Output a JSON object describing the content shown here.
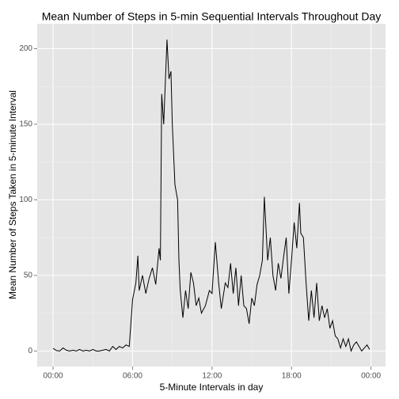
{
  "chart_data": {
    "type": "line",
    "title": "Mean Number of Steps in 5-min Sequential Intervals Throughout Day",
    "x_label": "5-Minute Intervals in day",
    "y_label": "Mean Number of Steps Taken in 5-minute Interval",
    "x": [
      0,
      0.25,
      0.5,
      0.75,
      1,
      1.25,
      1.5,
      1.75,
      2,
      2.25,
      2.5,
      2.75,
      3,
      3.25,
      3.5,
      3.75,
      4,
      4.25,
      4.5,
      4.75,
      5,
      5.25,
      5.5,
      5.75,
      6,
      6.25,
      6.4,
      6.5,
      6.75,
      7,
      7.25,
      7.5,
      7.75,
      8,
      8.1,
      8.2,
      8.35,
      8.6,
      8.75,
      8.9,
      9,
      9.2,
      9.4,
      9.5,
      9.6,
      9.8,
      10,
      10.2,
      10.4,
      10.6,
      10.8,
      11,
      11.2,
      11.5,
      11.8,
      12,
      12.1,
      12.25,
      12.5,
      12.7,
      13,
      13.2,
      13.4,
      13.6,
      13.8,
      14,
      14.2,
      14.4,
      14.6,
      14.8,
      15,
      15.2,
      15.4,
      15.6,
      15.8,
      15.95,
      16.2,
      16.4,
      16.6,
      16.8,
      17,
      17.2,
      17.4,
      17.6,
      17.8,
      18,
      18.2,
      18.4,
      18.6,
      18.7,
      18.9,
      19.1,
      19.3,
      19.5,
      19.7,
      19.9,
      20.1,
      20.3,
      20.5,
      20.7,
      20.9,
      21.1,
      21.3,
      21.5,
      21.7,
      21.9,
      22.1,
      22.3,
      22.5,
      22.7,
      22.9,
      23.1,
      23.3,
      23.5,
      23.7,
      23.9
    ],
    "series": [
      {
        "name": "steps",
        "color": "#000000",
        "values": [
          1.7,
          0.3,
          0,
          2,
          0.5,
          0,
          0.5,
          0,
          1,
          0,
          0.5,
          0,
          1,
          0,
          0,
          0.5,
          1,
          0,
          3,
          1,
          3,
          2,
          4,
          3,
          34,
          45,
          63,
          40,
          50,
          38,
          48,
          55,
          44,
          68,
          60,
          170,
          150,
          206,
          180,
          185,
          150,
          110,
          100,
          60,
          40,
          22,
          40,
          28,
          52,
          45,
          30,
          35,
          25,
          30,
          40,
          38,
          52,
          72,
          45,
          28,
          45,
          42,
          58,
          38,
          55,
          30,
          50,
          30,
          28,
          18,
          35,
          30,
          44,
          50,
          60,
          102,
          60,
          75,
          50,
          40,
          58,
          48,
          62,
          75,
          38,
          60,
          85,
          68,
          98,
          78,
          75,
          45,
          20,
          40,
          22,
          45,
          20,
          30,
          22,
          28,
          15,
          20,
          10,
          8,
          2,
          8,
          3,
          8,
          0,
          4,
          6,
          3,
          0,
          2,
          4,
          1
        ]
      }
    ],
    "xlim": [
      -1.2,
      25.1
    ],
    "ylim": [
      -10.3,
      216.5
    ],
    "xticks": [
      {
        "value": 0,
        "label": "00:00"
      },
      {
        "value": 6,
        "label": "06:00"
      },
      {
        "value": 12,
        "label": "12:00"
      },
      {
        "value": 18,
        "label": "18:00"
      },
      {
        "value": 24,
        "label": "00:00"
      }
    ],
    "yticks": [
      0,
      50,
      100,
      150,
      200
    ],
    "grid": true
  }
}
